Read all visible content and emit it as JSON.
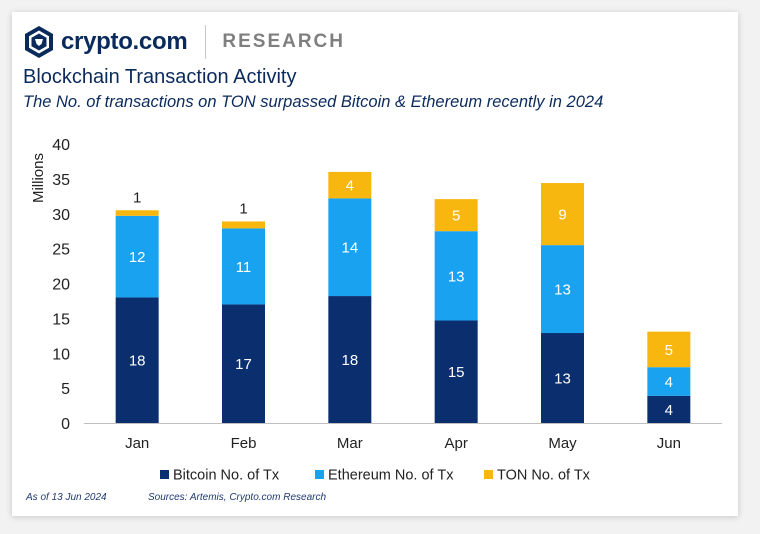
{
  "brand": {
    "name": "crypto.com",
    "section": "RESEARCH",
    "logo": "crypto-com-lion-shield-logo"
  },
  "colors": {
    "navy": "#0b2a5c",
    "bitcoin": "#0a2e6e",
    "ethereum": "#19a2f0",
    "ton": "#f7b70f"
  },
  "chart_data": {
    "type": "bar",
    "stacked": true,
    "title": "Blockchain Transaction Activity",
    "subtitle": "The No. of transactions on TON surpassed Bitcoin & Ethereum recently in 2024",
    "ylabel": "Millions",
    "xlabel": "",
    "ylim": [
      0,
      40
    ],
    "yticks": [
      0,
      5,
      10,
      15,
      20,
      25,
      30,
      35,
      40
    ],
    "categories": [
      "Jan",
      "Feb",
      "Mar",
      "Apr",
      "May",
      "Jun"
    ],
    "series": [
      {
        "name": "Bitcoin No. of Tx",
        "color": "#0a2e6e",
        "values": [
          18,
          17,
          18.2,
          14.7,
          12.9,
          3.9
        ],
        "labels": [
          "18",
          "17",
          "18",
          "15",
          "13",
          "4"
        ]
      },
      {
        "name": "Ethereum No. of Tx",
        "color": "#19a2f0",
        "values": [
          11.7,
          10.9,
          14.0,
          12.8,
          12.6,
          4.1
        ],
        "labels": [
          "12",
          "11",
          "14",
          "13",
          "13",
          "4"
        ]
      },
      {
        "name": "TON No. of Tx",
        "color": "#f7b70f",
        "values": [
          0.8,
          1.0,
          3.8,
          4.6,
          8.9,
          5.1
        ],
        "labels": [
          "1",
          "1",
          "4",
          "5",
          "9",
          "5"
        ]
      }
    ],
    "legend": "bottom"
  },
  "footer": {
    "as_of": "As of 13 Jun 2024",
    "sources": "Sources: Artemis, Crypto.com Research"
  }
}
